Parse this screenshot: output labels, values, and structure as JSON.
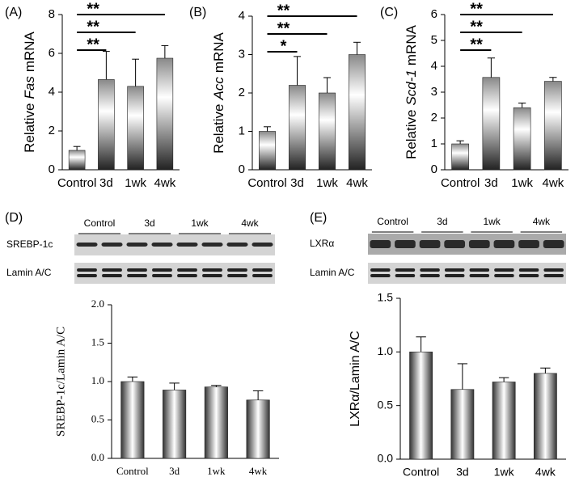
{
  "chart_data": [
    {
      "type": "bar",
      "panel": "(A)",
      "ylabel": {
        "prefix": "Relative",
        "gene": "Fas",
        "suffix": "mRNA"
      },
      "categories": [
        "Control",
        "3d",
        "1wk",
        "4wk"
      ],
      "values": [
        1.0,
        4.65,
        4.3,
        5.75
      ],
      "errors": [
        0.2,
        1.45,
        1.4,
        0.65
      ],
      "color": "#222222",
      "ylim": [
        0,
        8
      ],
      "yticks": [
        0,
        2,
        4,
        6,
        8
      ],
      "significance": [
        {
          "label": "**",
          "to": "3d"
        },
        {
          "label": "**",
          "to": "1wk"
        },
        {
          "label": "**",
          "to": "4wk"
        }
      ]
    },
    {
      "type": "bar",
      "panel": "(B)",
      "ylabel": {
        "prefix": "Relative",
        "gene": "Acc",
        "suffix": "mRNA"
      },
      "categories": [
        "Control",
        "3d",
        "1wk",
        "4wk"
      ],
      "values": [
        1.0,
        2.2,
        2.0,
        3.0
      ],
      "errors": [
        0.12,
        0.75,
        0.4,
        0.32
      ],
      "color": "#222222",
      "ylim": [
        0,
        4
      ],
      "yticks": [
        0,
        1,
        2,
        3,
        4
      ],
      "significance": [
        {
          "label": "*",
          "to": "3d"
        },
        {
          "label": "**",
          "to": "1wk"
        },
        {
          "label": "**",
          "to": "4wk"
        }
      ]
    },
    {
      "type": "bar",
      "panel": "(C)",
      "ylabel": {
        "prefix": "Relative",
        "gene": "Scd-1",
        "suffix": "mRNA"
      },
      "categories": [
        "Control",
        "3d",
        "1wk",
        "4wk"
      ],
      "values": [
        1.0,
        3.57,
        2.4,
        3.42
      ],
      "errors": [
        0.12,
        0.75,
        0.18,
        0.15
      ],
      "color": "#222222",
      "ylim": [
        0,
        6
      ],
      "yticks": [
        0,
        1,
        2,
        3,
        4,
        5,
        6
      ],
      "significance": [
        {
          "label": "**",
          "to": "3d"
        },
        {
          "label": "**",
          "to": "1wk"
        },
        {
          "label": "**",
          "to": "4wk"
        }
      ]
    },
    {
      "type": "bar",
      "panel": "(D)",
      "ylabel": "SREBP-1c/Lamin A/C",
      "blot": {
        "groups": [
          "Control",
          "3d",
          "1wk",
          "4wk"
        ],
        "rows": [
          "SREBP-1c",
          "Lamin A/C"
        ]
      },
      "categories": [
        "Control",
        "3d",
        "1wk",
        "4wk"
      ],
      "values": [
        1.0,
        0.89,
        0.93,
        0.76
      ],
      "errors": [
        0.06,
        0.09,
        0.02,
        0.12
      ],
      "color": "#222222",
      "ylim": [
        0,
        2.0
      ],
      "yticks": [
        {
          "value": 0,
          "label": "0.0"
        },
        {
          "value": 0.5,
          "label": "0.5"
        },
        {
          "value": 1,
          "label": "1.0"
        },
        {
          "value": 1.5,
          "label": "1.5"
        },
        {
          "value": 2,
          "label": "2.0"
        }
      ]
    },
    {
      "type": "bar",
      "panel": "(E)",
      "ylabel": "LXRα/Lamin A/C",
      "blot": {
        "groups": [
          "Control",
          "3d",
          "1wk",
          "4wk"
        ],
        "rows": [
          "LXRα",
          "Lamin A/C"
        ]
      },
      "categories": [
        "Control",
        "3d",
        "1wk",
        "4wk"
      ],
      "values": [
        1.0,
        0.65,
        0.72,
        0.8
      ],
      "errors": [
        0.14,
        0.24,
        0.04,
        0.05
      ],
      "color": "#222222",
      "ylim": [
        0,
        1.5
      ],
      "yticks": [
        {
          "value": 0,
          "label": "0.0"
        },
        {
          "value": 0.5,
          "label": "0.5"
        },
        {
          "value": 1,
          "label": "1.0"
        },
        {
          "value": 1.5,
          "label": "1.5"
        }
      ]
    }
  ]
}
